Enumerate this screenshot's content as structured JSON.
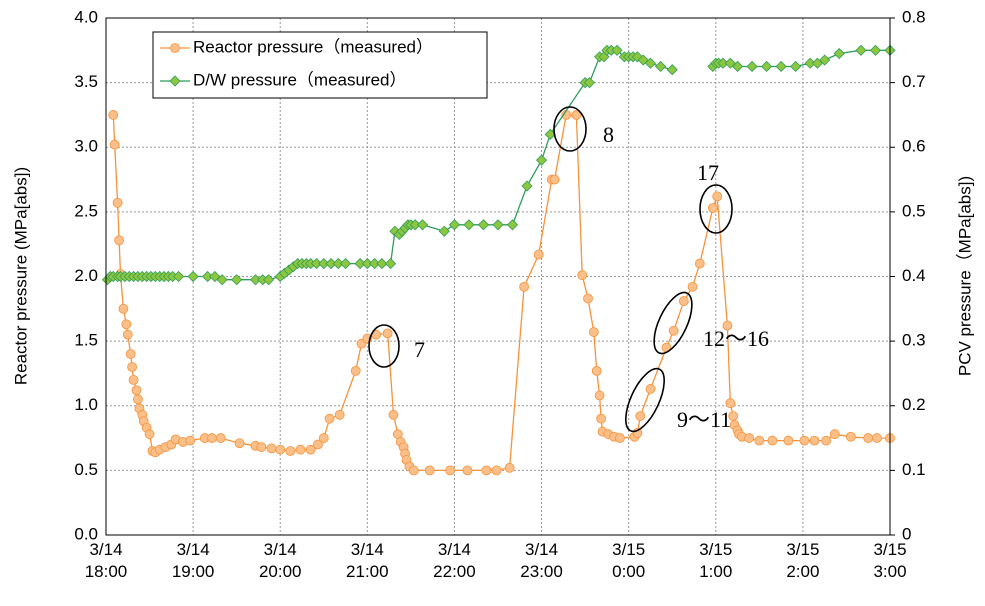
{
  "chart_data": {
    "type": "line",
    "y_label": "Reactor pressure (MPa[abs])",
    "y2_label": "PCV pressure（MPa[abs])",
    "xlim": [
      "3/14 18:00",
      "3/15 3:00"
    ],
    "xticks": [
      "3/14 18:00",
      "3/14 19:00",
      "3/14 20:00",
      "3/14 21:00",
      "3/14 22:00",
      "3/14 23:00",
      "3/15 0:00",
      "3/15 1:00",
      "3/15 2:00",
      "3/15 3:00"
    ],
    "ylim": [
      0,
      4
    ],
    "yticks": [
      {
        "value": 0,
        "label": "0.0"
      },
      0.5,
      {
        "value": 1,
        "label": "1.0"
      },
      1.5,
      {
        "value": 2,
        "label": "2.0"
      },
      2.5,
      {
        "value": 3,
        "label": "3.0"
      },
      3.5,
      {
        "value": 4,
        "label": "4.0"
      }
    ],
    "y2lim": [
      0,
      0.8
    ],
    "y2ticks": [
      0,
      0.1,
      0.2,
      0.3,
      0.4,
      0.5,
      0.6,
      0.7,
      0.8
    ],
    "grid": true,
    "legend": "upper left",
    "series": [
      {
        "name": "Reactor pressure（measured）",
        "color": "#f7923a",
        "marker": "circle",
        "x": [
          "3/14 18:05",
          "3/14 18:06",
          "3/14 18:08",
          "3/14 18:09",
          "3/14 18:10",
          "3/14 18:12",
          "3/14 18:14",
          "3/14 18:15",
          "3/14 18:17",
          "3/14 18:18",
          "3/14 18:19",
          "3/14 18:21",
          "3/14 18:22",
          "3/14 18:23",
          "3/14 18:25",
          "3/14 18:26",
          "3/14 18:28",
          "3/14 18:30",
          "3/14 18:32",
          "3/14 18:34",
          "3/14 18:37",
          "3/14 18:41",
          "3/14 18:45",
          "3/14 18:48",
          "3/14 18:53",
          "3/14 18:58",
          "3/14 19:08",
          "3/14 19:13",
          "3/14 19:19",
          "3/14 19:32",
          "3/14 19:43",
          "3/14 19:47",
          "3/14 19:54",
          "3/14 20:00",
          "3/14 20:07",
          "3/14 20:14",
          "3/14 20:21",
          "3/14 20:26",
          "3/14 20:30",
          "3/14 20:34",
          "3/14 20:41",
          "3/14 20:52",
          "3/14 20:56",
          "3/14 21:00",
          "3/14 21:06",
          "3/14 21:14",
          "3/14 21:18",
          "3/14 21:21",
          "3/14 21:23",
          "3/14 21:25",
          "3/14 21:26",
          "3/14 21:27",
          "3/14 21:29",
          "3/14 21:32",
          "3/14 21:43",
          "3/14 21:57",
          "3/14 22:09",
          "3/14 22:22",
          "3/14 22:29",
          "3/14 22:38",
          "3/14 22:48",
          "3/14 22:58",
          "3/14 23:07",
          "3/14 23:09",
          "3/14 23:17",
          "3/14 23:24",
          "3/14 23:28",
          "3/14 23:32",
          "3/14 23:36",
          "3/14 23:38",
          "3/14 23:40",
          "3/14 23:41",
          "3/14 23:42",
          "3/14 23:46",
          "3/14 23:50",
          "3/14 23:54",
          "3/15 0:04",
          "3/15 0:06",
          "3/15 0:08",
          "3/15 0:15",
          "3/15 0:26",
          "3/15 0:31",
          "3/15 0:38",
          "3/15 0:44",
          "3/15 0:49",
          "3/15 0:58",
          "3/15 1:01",
          "3/15 1:08",
          "3/15 1:10",
          "3/15 1:12",
          "3/15 1:13",
          "3/15 1:15",
          "3/15 1:16",
          "3/15 1:18",
          "3/15 1:23",
          "3/15 1:30",
          "3/15 1:39",
          "3/15 1:50",
          "3/15 2:01",
          "3/15 2:08",
          "3/15 2:16",
          "3/15 2:22",
          "3/15 2:33",
          "3/15 2:45",
          "3/15 2:51",
          "3/15 3:00"
        ],
        "values": [
          3.25,
          3.02,
          2.57,
          2.28,
          2.02,
          1.75,
          1.63,
          1.55,
          1.4,
          1.3,
          1.2,
          1.12,
          1.05,
          0.98,
          0.93,
          0.88,
          0.83,
          0.78,
          0.65,
          0.64,
          0.66,
          0.68,
          0.7,
          0.74,
          0.72,
          0.73,
          0.75,
          0.75,
          0.75,
          0.71,
          0.69,
          0.68,
          0.67,
          0.66,
          0.65,
          0.66,
          0.66,
          0.7,
          0.75,
          0.9,
          0.93,
          1.27,
          1.48,
          1.52,
          1.55,
          1.56,
          0.93,
          0.78,
          0.72,
          0.68,
          0.63,
          0.58,
          0.53,
          0.5,
          0.5,
          0.5,
          0.5,
          0.5,
          0.5,
          0.52,
          1.92,
          2.17,
          2.75,
          2.75,
          3.25,
          3.25,
          2.01,
          1.83,
          1.57,
          1.27,
          1.08,
          0.9,
          0.8,
          0.78,
          0.76,
          0.75,
          0.76,
          0.79,
          0.92,
          1.13,
          1.45,
          1.58,
          1.81,
          1.92,
          2.1,
          2.53,
          2.62,
          1.62,
          1.02,
          0.92,
          0.85,
          0.81,
          0.78,
          0.76,
          0.75,
          0.73,
          0.73,
          0.73,
          0.73,
          0.73,
          0.73,
          0.78,
          0.76,
          0.75,
          0.75,
          0.75
        ]
      },
      {
        "name": "D/W pressure（measured）",
        "color": "#2e9e5b",
        "marker": "diamond",
        "axis": "y2",
        "x": [
          "3/14 18:01",
          "3/14 18:03",
          "3/14 18:05",
          "3/14 18:08",
          "3/14 18:10",
          "3/14 18:13",
          "3/14 18:16",
          "3/14 18:19",
          "3/14 18:22",
          "3/14 18:25",
          "3/14 18:28",
          "3/14 18:31",
          "3/14 18:34",
          "3/14 18:37",
          "3/14 18:40",
          "3/14 18:43",
          "3/14 18:46",
          "3/14 18:50",
          "3/14 19:00",
          "3/14 19:10",
          "3/14 19:15",
          "3/14 19:20",
          "3/14 19:30",
          "3/14 19:43",
          "3/14 19:48",
          "3/14 19:52",
          "3/14 20:00",
          "3/14 20:03",
          "3/14 20:06",
          "3/14 20:09",
          "3/14 20:12",
          "3/14 20:15",
          "3/14 20:18",
          "3/14 20:21",
          "3/14 20:25",
          "3/14 20:30",
          "3/14 20:35",
          "3/14 20:40",
          "3/14 20:45",
          "3/14 20:55",
          "3/14 21:00",
          "3/14 21:05",
          "3/14 21:10",
          "3/14 21:16",
          "3/14 21:19",
          "3/14 21:22",
          "3/14 21:24",
          "3/14 21:26",
          "3/14 21:28",
          "3/14 21:30",
          "3/14 21:33",
          "3/14 21:38",
          "3/14 21:53",
          "3/14 22:00",
          "3/14 22:10",
          "3/14 22:20",
          "3/14 22:30",
          "3/14 22:40",
          "3/14 22:50",
          "3/14 23:00",
          "3/14 23:06",
          "3/14 23:30",
          "3/14 23:33",
          "3/14 23:40",
          "3/14 23:43",
          "3/14 23:45",
          "3/14 23:48",
          "3/14 23:52",
          "3/14 23:57",
          "3/15 0:00",
          "3/15 0:03",
          "3/15 0:06",
          "3/15 0:10",
          "3/15 0:15",
          "3/15 0:22",
          "3/15 0:30",
          "3/15 0:45",
          "3/15 0:58",
          "3/15 1:00",
          "3/15 1:02",
          "3/15 1:05",
          "3/15 1:10",
          "3/15 1:15",
          "3/15 1:25",
          "3/15 1:35",
          "3/15 1:45",
          "3/15 1:55",
          "3/15 2:05",
          "3/15 2:10",
          "3/15 2:15",
          "3/15 2:25",
          "3/15 2:40",
          "3/15 2:50",
          "3/15 3:00"
        ],
        "values": [
          0.395,
          0.4,
          0.4,
          0.4,
          0.4,
          0.4,
          0.4,
          0.4,
          0.4,
          0.4,
          0.4,
          0.4,
          0.4,
          0.4,
          0.4,
          0.4,
          0.4,
          0.4,
          0.4,
          0.4,
          0.4,
          0.395,
          0.395,
          0.395,
          0.395,
          0.395,
          0.4,
          0.405,
          0.41,
          0.415,
          0.42,
          0.42,
          0.42,
          0.42,
          0.42,
          0.42,
          0.42,
          0.42,
          0.42,
          0.42,
          0.42,
          0.42,
          0.42,
          0.42,
          0.47,
          0.465,
          0.47,
          0.475,
          0.48,
          0.48,
          0.48,
          0.48,
          0.47,
          0.48,
          0.48,
          0.48,
          0.48,
          0.48,
          0.54,
          0.58,
          0.62,
          0.7,
          0.7,
          0.74,
          0.74,
          0.75,
          0.75,
          0.75,
          0.74,
          0.74,
          0.74,
          0.74,
          0.735,
          0.73,
          0.725,
          0.72,
          null,
          0.725,
          0.73,
          0.73,
          0.73,
          0.73,
          0.725,
          0.725,
          0.725,
          0.725,
          0.725,
          0.73,
          0.73,
          0.735,
          0.745,
          0.75,
          0.75,
          0.75
        ]
      }
    ],
    "annotations": [
      "7",
      "8",
      "17",
      "12〜16",
      "9〜11"
    ]
  }
}
